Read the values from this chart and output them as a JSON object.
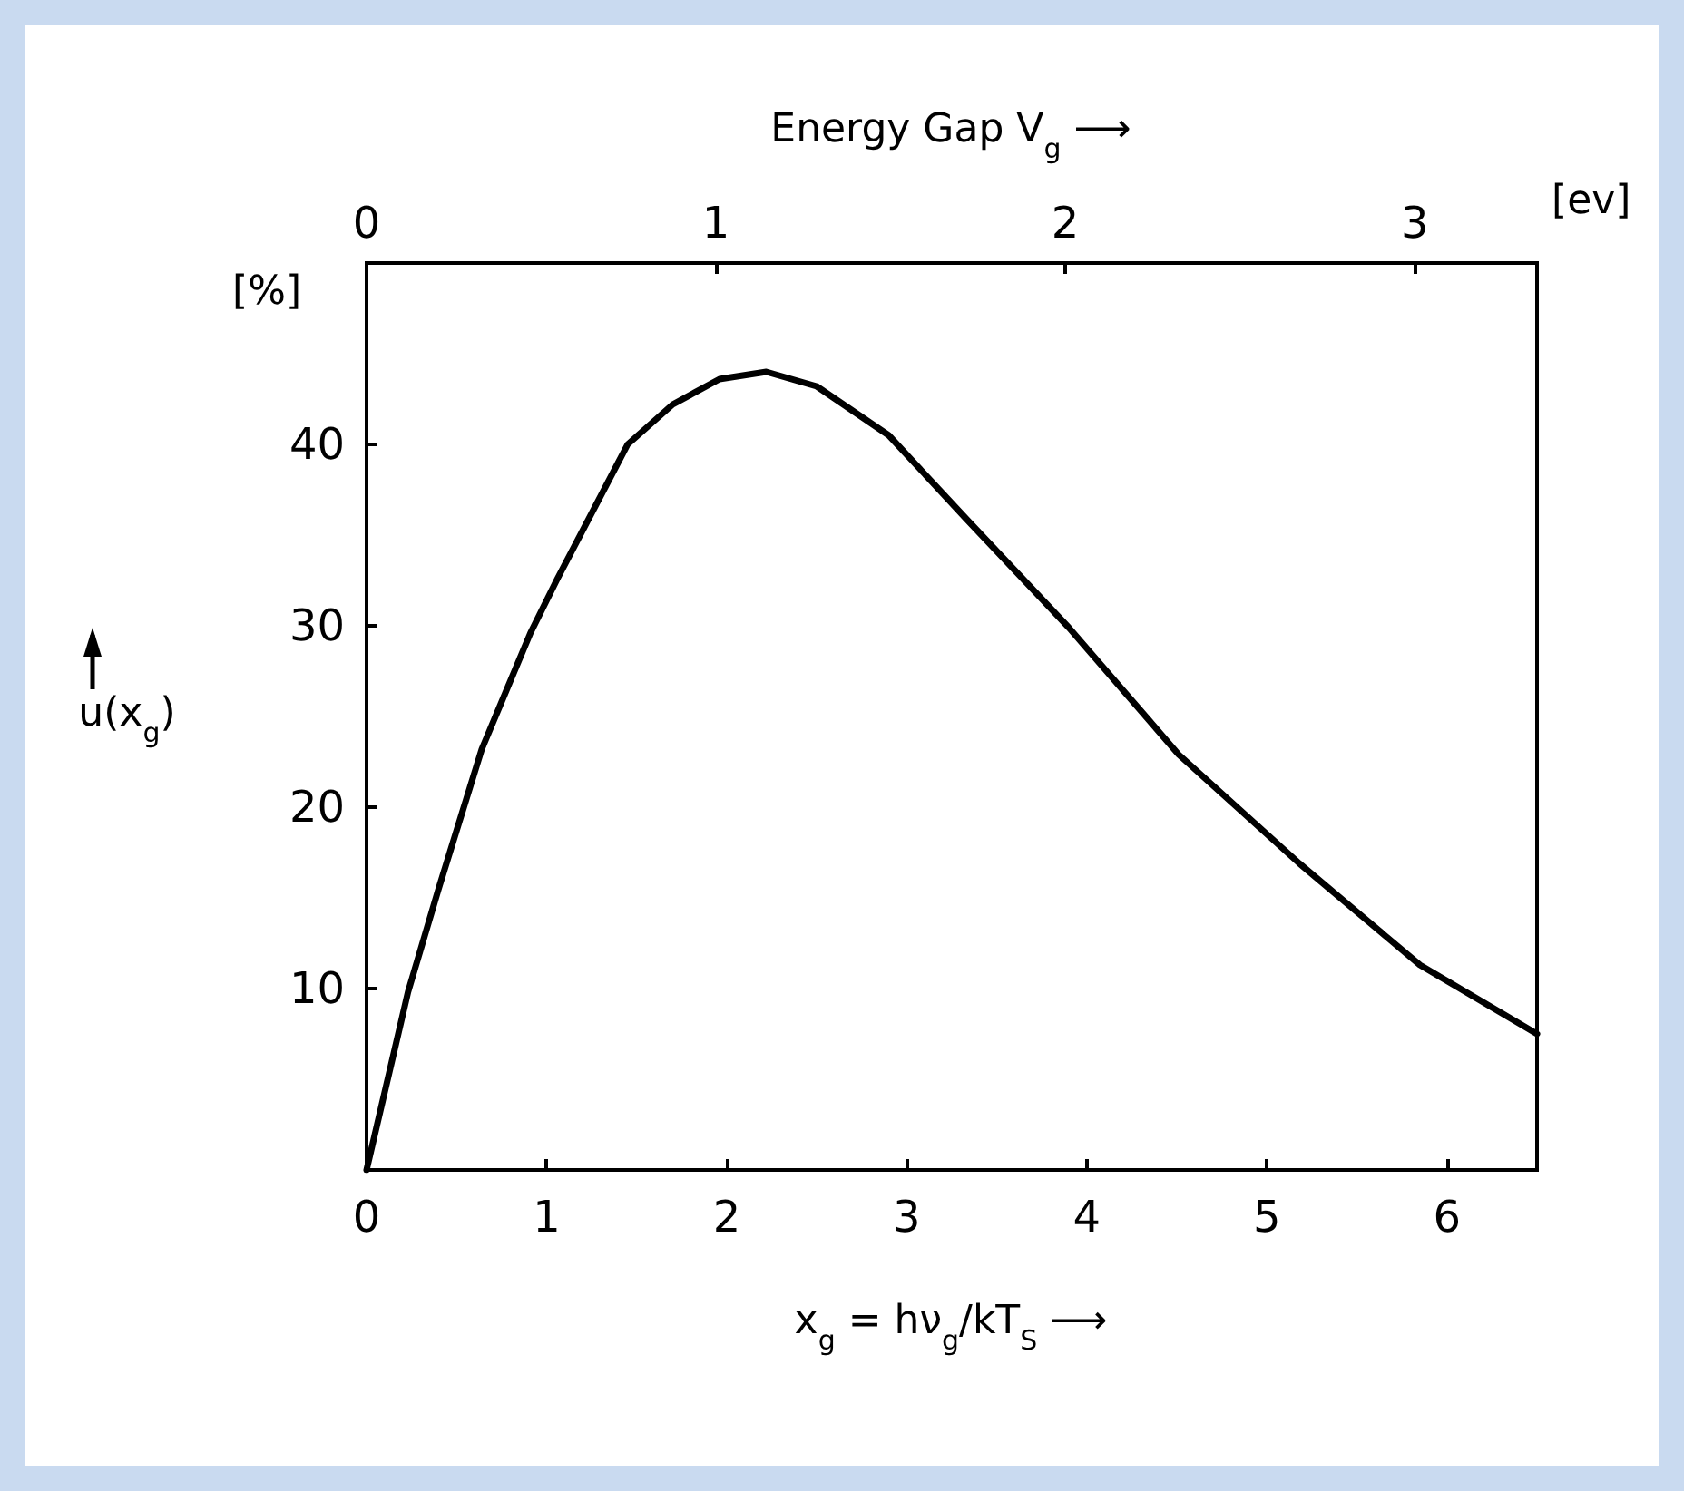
{
  "chart_data": {
    "type": "line",
    "x2label": "Energy Gap V$_{g}$ ⟶",
    "xlabel": "x$_{g}$ = hν$_{g}$/kT$_{S}$ ⟶",
    "ylabel": "u(x$_{g}$)",
    "annotations": [
      "[%]",
      "[ev]"
    ],
    "x": [
      0,
      0.23,
      0.4,
      0.64,
      0.91,
      1.06,
      1.45,
      1.7,
      1.96,
      2.22,
      2.5,
      2.9,
      3.33,
      3.9,
      4.51,
      5.18,
      5.85,
      6.5
    ],
    "series": [
      {
        "color": "#000000",
        "values": [
          0,
          9.8,
          15.5,
          23.2,
          29.6,
          32.6,
          40,
          42.2,
          43.6,
          44,
          43.2,
          40.5,
          35.9,
          29.9,
          22.9,
          16.9,
          11.3,
          7.5
        ]
      }
    ],
    "xlim": [
      0,
      6.5
    ],
    "xticks": [
      0,
      1,
      2,
      3,
      4,
      5,
      6
    ],
    "x2lim": [
      0,
      3.35
    ],
    "x2ticks": [
      0,
      1,
      2,
      3
    ],
    "ylim": [
      0,
      50
    ],
    "yticks": [
      10,
      20,
      30,
      40
    ],
    "grid": false,
    "marker": "none",
    "line_style": "solid"
  }
}
